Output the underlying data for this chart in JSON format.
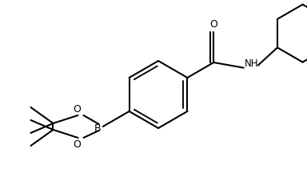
{
  "background_color": "#ffffff",
  "line_color": "#000000",
  "line_width": 1.5,
  "figsize": [
    3.84,
    2.36
  ],
  "dpi": 100,
  "xlim": [
    0,
    384
  ],
  "ylim": [
    0,
    236
  ]
}
